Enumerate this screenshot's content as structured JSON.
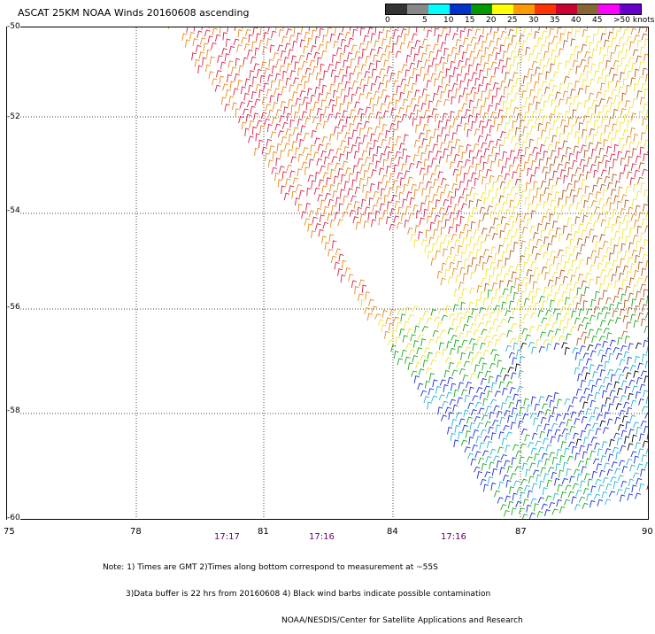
{
  "title": "ASCAT 25KM NOAA Winds 20160608 ascending",
  "legend": {
    "labels": [
      "0",
      "5",
      "10",
      "15",
      "20",
      "25",
      "30",
      "35",
      "40",
      "45",
      ">50 knots"
    ],
    "colors": [
      "#333333",
      "#888888",
      "#00ffff",
      "#0033cc",
      "#009900",
      "#ffff00",
      "#ff9900",
      "#ff3300",
      "#cc0033",
      "#886633",
      "#ff00ff",
      "#6600cc"
    ]
  },
  "map": {
    "lon_ticks": [
      "75",
      "78",
      "81",
      "84",
      "87",
      "90"
    ],
    "lat_ticks": [
      "-50",
      "-52",
      "-54",
      "-56",
      "-58",
      "-60"
    ],
    "time_labels": [
      "17:17",
      "17:16",
      "17:16"
    ],
    "wind_colors": {
      "orange": "#e8891a",
      "red": "#d6204a",
      "yellow": "#f2e233",
      "brown": "#b05a20",
      "green": "#1aa81a",
      "blue": "#1a2ad6",
      "cyan": "#20b4d0",
      "black": "#000000",
      "gray": "#777777"
    }
  },
  "notes": [
    "Note: 1) Times are GMT 2)Times along bottom correspond to measurement at ~55S",
    "3)Data buffer is 22 hrs from 20160608 4) Black wind barbs indicate possible contamination",
    "NOAA/NESDIS/Center for Satellite Applications and Research"
  ]
}
